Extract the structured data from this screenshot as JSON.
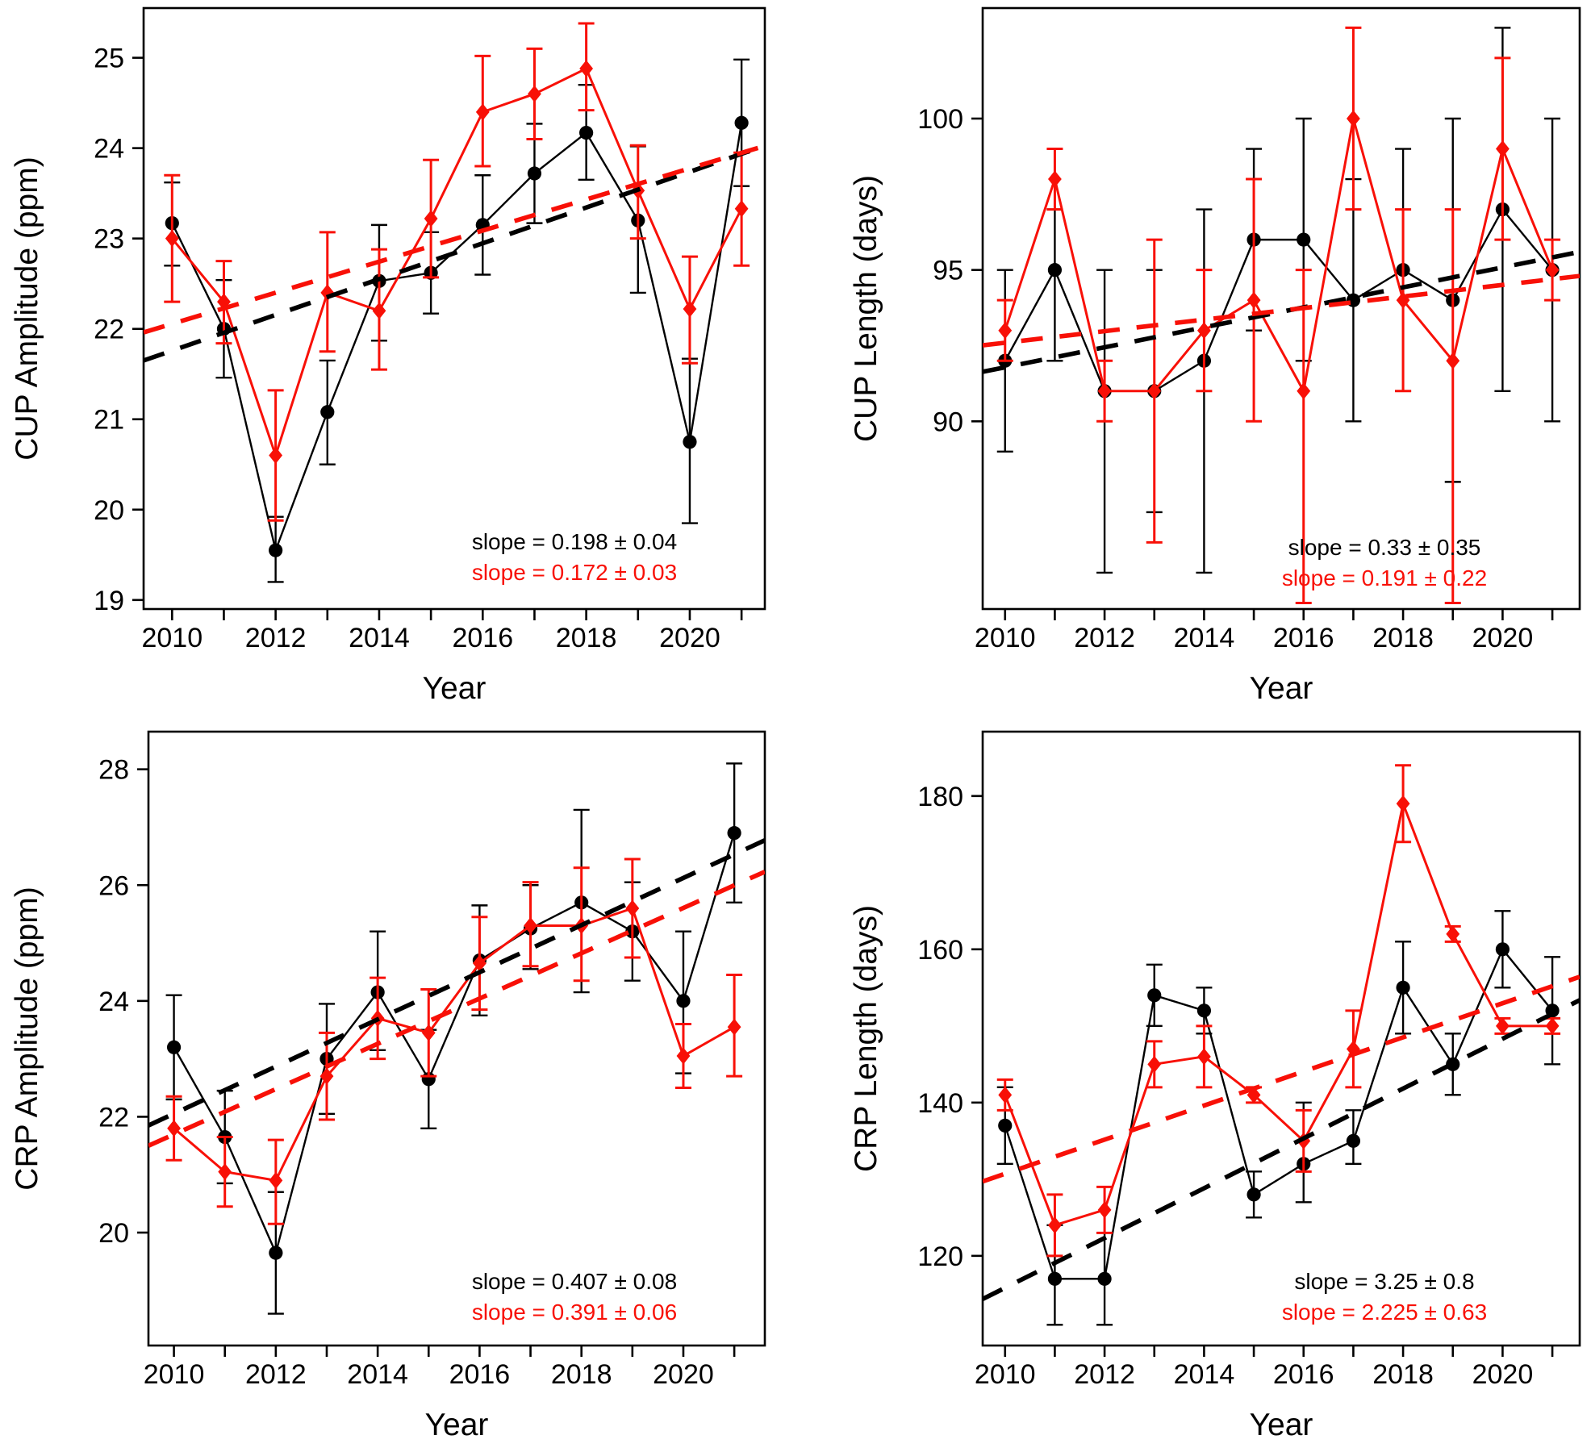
{
  "figure_title": "",
  "chart_data": {
    "type": "line",
    "description": "2x2 grid of annual time-series plots with error bars, two series each (black circles, red diamonds) and dashed linear trend lines",
    "years": [
      2010,
      2011,
      2012,
      2013,
      2014,
      2015,
      2016,
      2017,
      2018,
      2019,
      2020,
      2021
    ],
    "x_major_tick_labels": [
      "2010",
      "2012",
      "2014",
      "2016",
      "2018",
      "2020"
    ],
    "x_major_tick_years": [
      2010,
      2012,
      2014,
      2016,
      2018,
      2020
    ],
    "xlabel": "Year",
    "colors": {
      "black_series": "#000000",
      "red_series": "#f81007"
    },
    "panels": [
      {
        "id": "cup-amplitude",
        "ylabel": "CUP Amplitude (ppm)",
        "xlabel": "Year",
        "yticks": [
          19,
          20,
          21,
          22,
          23,
          24,
          25
        ],
        "ytick_labels": [
          "19",
          "20",
          "21",
          "22",
          "23",
          "24",
          "25"
        ],
        "ylim": [
          18.9,
          25.55
        ],
        "xlim": [
          2009.45,
          2021.45
        ],
        "grid": false,
        "series": [
          {
            "name": "black",
            "color": "#000000",
            "marker": "circle",
            "values": [
              23.17,
              22.0,
              19.55,
              21.08,
              22.53,
              22.62,
              23.15,
              23.72,
              24.17,
              23.2,
              20.75,
              24.28
            ],
            "err_lo": [
              22.7,
              21.46,
              19.2,
              20.5,
              21.87,
              22.17,
              22.6,
              23.17,
              23.65,
              22.4,
              19.85,
              23.58
            ],
            "err_hi": [
              23.62,
              22.54,
              19.92,
              21.65,
              23.15,
              23.07,
              23.7,
              24.27,
              24.7,
              24.02,
              21.67,
              24.98
            ],
            "trend": {
              "slope": 0.198,
              "value_at_2009_5": 21.66
            },
            "slope_label": "slope = 0.198 ± 0.04"
          },
          {
            "name": "red",
            "color": "#f81007",
            "marker": "diamond",
            "values": [
              23.0,
              22.3,
              20.6,
              22.4,
              22.2,
              23.22,
              24.4,
              24.6,
              24.88,
              23.53,
              22.22,
              23.33
            ],
            "err_lo": [
              22.3,
              21.84,
              19.88,
              21.75,
              21.55,
              22.57,
              23.8,
              24.1,
              24.42,
              23.0,
              21.62,
              22.7
            ],
            "err_hi": [
              23.7,
              22.75,
              21.32,
              23.07,
              22.88,
              23.87,
              25.02,
              25.1,
              25.38,
              24.03,
              22.8,
              23.95
            ],
            "trend": {
              "slope": 0.172,
              "value_at_2009_5": 21.97
            },
            "slope_label": "slope = 0.172 ± 0.03"
          }
        ]
      },
      {
        "id": "cup-length",
        "ylabel": "CUP Length (days)",
        "xlabel": "Year",
        "yticks": [
          90,
          95,
          100
        ],
        "ytick_labels": [
          "90",
          "95",
          "100"
        ],
        "ylim": [
          83.8,
          103.65
        ],
        "xlim": [
          2009.55,
          2021.55
        ],
        "grid": false,
        "series": [
          {
            "name": "black",
            "color": "#000000",
            "marker": "circle",
            "values": [
              92,
              95,
              91,
              91,
              92,
              96,
              96,
              94,
              95,
              94,
              97,
              95
            ],
            "err_lo": [
              89,
              92,
              85,
              87,
              85,
              93,
              92,
              90,
              91,
              88,
              91,
              90
            ],
            "err_hi": [
              95,
              97,
              95,
              95,
              97,
              99,
              100,
              98,
              99,
              100,
              103,
              100
            ],
            "trend": {
              "slope": 0.33,
              "value_at_2009_5": 91.62
            },
            "slope_label": "slope = 0.33 ± 0.35"
          },
          {
            "name": "red",
            "color": "#f81007",
            "marker": "diamond",
            "values": [
              93,
              98,
              91,
              91,
              93,
              94,
              91,
              100,
              94,
              92,
              99,
              95
            ],
            "err_lo": [
              92,
              97,
              90,
              86,
              91,
              90,
              84,
              97,
              91,
              84,
              96,
              94
            ],
            "err_hi": [
              94,
              99,
              92,
              96,
              95,
              98,
              95,
              103,
              97,
              97,
              102,
              96
            ],
            "trend": {
              "slope": 0.191,
              "value_at_2009_5": 92.5
            },
            "slope_label": "slope = 0.191 ± 0.22"
          }
        ]
      },
      {
        "id": "crp-amplitude",
        "ylabel": "CRP Amplitude (ppm)",
        "xlabel": "Year",
        "yticks": [
          20,
          22,
          24,
          26,
          28
        ],
        "ytick_labels": [
          "20",
          "22",
          "24",
          "26",
          "28"
        ],
        "ylim": [
          18.05,
          28.65
        ],
        "xlim": [
          2009.5,
          2021.6
        ],
        "grid": false,
        "series": [
          {
            "name": "black",
            "color": "#000000",
            "marker": "circle",
            "values": [
              23.2,
              21.65,
              19.65,
              23.0,
              24.15,
              22.65,
              24.7,
              25.25,
              25.7,
              25.2,
              24.0,
              26.9
            ],
            "err_lo": [
              22.3,
              20.85,
              18.6,
              22.05,
              23.15,
              21.8,
              23.75,
              24.55,
              24.15,
              24.35,
              22.75,
              25.7
            ],
            "err_hi": [
              24.1,
              22.45,
              20.7,
              23.95,
              25.2,
              23.5,
              25.65,
              26.0,
              27.3,
              26.05,
              25.2,
              28.1
            ],
            "trend": {
              "slope": 0.407,
              "value_at_2009_5": 21.85
            },
            "slope_label": "slope = 0.407 ± 0.08"
          },
          {
            "name": "red",
            "color": "#f81007",
            "marker": "diamond",
            "values": [
              21.8,
              21.05,
              20.9,
              22.7,
              23.7,
              23.45,
              24.65,
              25.3,
              25.3,
              25.6,
              23.05,
              23.55
            ],
            "err_lo": [
              21.25,
              20.45,
              20.15,
              21.95,
              23.0,
              22.7,
              23.85,
              24.6,
              24.35,
              24.75,
              22.5,
              22.7
            ],
            "err_hi": [
              22.35,
              21.65,
              21.6,
              23.45,
              24.4,
              24.2,
              25.45,
              26.05,
              26.3,
              26.45,
              23.6,
              24.45
            ],
            "trend": {
              "slope": 0.391,
              "value_at_2009_5": 21.5
            },
            "slope_label": "slope = 0.391 ± 0.06"
          }
        ]
      },
      {
        "id": "crp-length",
        "ylabel": "CRP Length (days)",
        "xlabel": "Year",
        "yticks": [
          120,
          140,
          160,
          180
        ],
        "ytick_labels": [
          "120",
          "140",
          "160",
          "180"
        ],
        "ylim": [
          108.3,
          188.4
        ],
        "xlim": [
          2009.55,
          2021.55
        ],
        "grid": false,
        "series": [
          {
            "name": "black",
            "color": "#000000",
            "marker": "circle",
            "values": [
              137,
              117,
              117,
              154,
              152,
              128,
              132,
              135,
              155,
              145,
              160,
              152
            ],
            "err_lo": [
              132,
              111,
              111,
              150,
              149,
              125,
              127,
              132,
              149,
              141,
              155,
              145
            ],
            "err_hi": [
              142,
              124,
              123,
              158,
              155,
              131,
              140,
              139,
              161,
              149,
              165,
              159
            ],
            "trend": {
              "slope": 3.25,
              "value_at_2009_5": 114.2
            },
            "slope_label": "slope = 3.25 ± 0.8"
          },
          {
            "name": "red",
            "color": "#f81007",
            "marker": "diamond",
            "values": [
              141,
              124,
              126,
              145,
              146,
              141,
              135,
              147,
              179,
              162,
              150,
              150
            ],
            "err_lo": [
              139,
              120,
              123,
              142,
              142,
              140,
              131,
              142,
              174,
              161,
              149,
              149
            ],
            "err_hi": [
              143,
              128,
              129,
              148,
              150,
              142,
              139,
              152,
              184,
              163,
              151,
              151
            ],
            "trend": {
              "slope": 2.225,
              "value_at_2009_5": 129.6
            },
            "slope_label": "slope = 2.225 ± 0.63"
          }
        ]
      }
    ]
  }
}
